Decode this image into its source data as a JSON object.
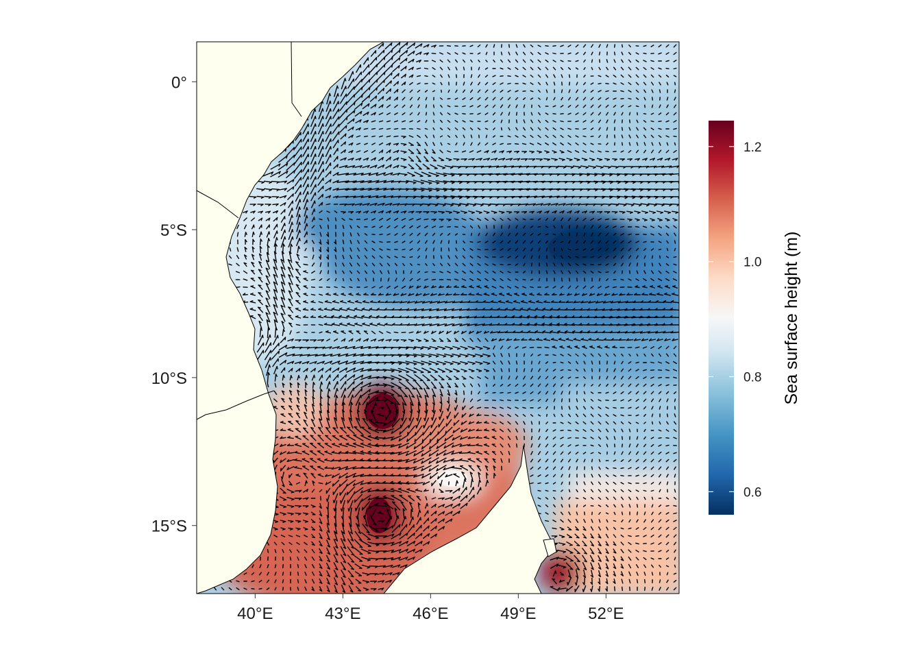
{
  "map": {
    "lon_range": [
      38,
      54.5
    ],
    "lat_range": [
      -17.3,
      1.35
    ],
    "x_ticks": [
      {
        "value": 40,
        "label": "40°E"
      },
      {
        "value": 43,
        "label": "43°E"
      },
      {
        "value": 46,
        "label": "46°E"
      },
      {
        "value": 49,
        "label": "49°E"
      },
      {
        "value": 52,
        "label": "52°E"
      }
    ],
    "y_ticks": [
      {
        "value": 0,
        "label": "0°"
      },
      {
        "value": -5,
        "label": "5°S"
      },
      {
        "value": -10,
        "label": "10°S"
      },
      {
        "value": -15,
        "label": "15°S"
      }
    ],
    "land_color": "#FFFFF0",
    "vectors": "current velocity arrows"
  },
  "colorbar": {
    "title": "Sea surface height (m)",
    "range": [
      0.56,
      1.245
    ],
    "ticks": [
      {
        "value": 0.6,
        "label": "0.6"
      },
      {
        "value": 0.8,
        "label": "0.8"
      },
      {
        "value": 1.0,
        "label": "1.0"
      },
      {
        "value": 1.2,
        "label": "1.2"
      }
    ],
    "palette": [
      "#053061",
      "#2166AC",
      "#4393C3",
      "#92C5DE",
      "#D1E5F0",
      "#F7F7F7",
      "#FDDBC7",
      "#F4A582",
      "#D6604D",
      "#B2182B",
      "#67001F"
    ]
  },
  "chart_data": {
    "type": "heatmap",
    "title": "",
    "xlabel": "",
    "ylabel": "",
    "colorbar_label": "Sea surface height (m)",
    "xlim": [
      38,
      54.5
    ],
    "ylim": [
      -17.3,
      1.35
    ],
    "value_range": [
      0.56,
      1.245
    ],
    "features": [
      {
        "lon": 50.3,
        "lat": -5.6,
        "ssh": 0.57
      },
      {
        "lon": 43.8,
        "lat": -4.8,
        "ssh": 0.68
      },
      {
        "lon": 44.2,
        "lat": -11.3,
        "ssh": 1.24
      },
      {
        "lon": 44.0,
        "lat": -14.7,
        "ssh": 1.23
      },
      {
        "lon": 47.0,
        "lat": -13.5,
        "ssh": 0.93
      },
      {
        "lon": 50.2,
        "lat": -16.8,
        "ssh": 1.2
      }
    ]
  }
}
